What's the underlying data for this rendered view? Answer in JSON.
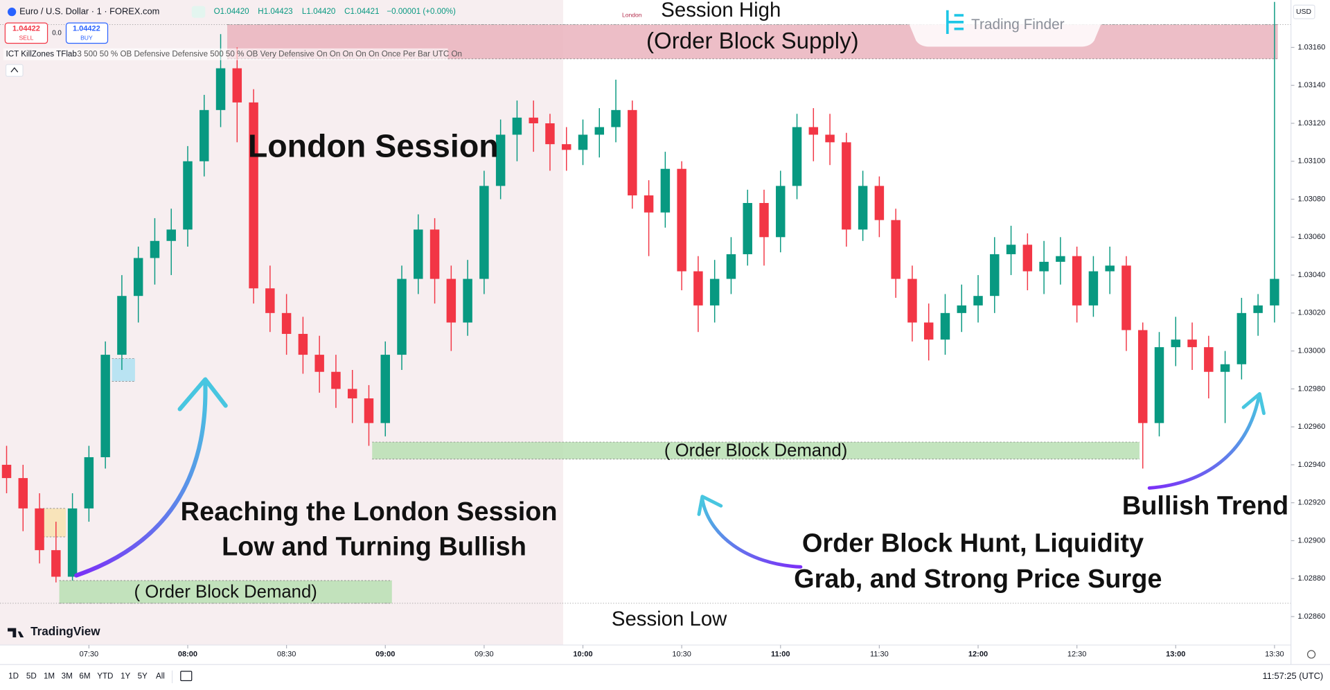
{
  "chart_data": {
    "type": "candlestick",
    "x": [
      "07:05",
      "07:10",
      "07:15",
      "07:20",
      "07:25",
      "07:30",
      "07:35",
      "07:40",
      "07:45",
      "07:50",
      "07:55",
      "08:00",
      "08:05",
      "08:10",
      "08:15",
      "08:20",
      "08:25",
      "08:30",
      "08:35",
      "08:40",
      "08:45",
      "08:50",
      "08:55",
      "09:00",
      "09:05",
      "09:10",
      "09:15",
      "09:20",
      "09:25",
      "09:30",
      "09:35",
      "09:40",
      "09:45",
      "09:50",
      "09:55",
      "10:00",
      "10:05",
      "10:10",
      "10:15",
      "10:20",
      "10:25",
      "10:30",
      "10:35",
      "10:40",
      "10:45",
      "10:50",
      "10:55",
      "11:00",
      "11:05",
      "11:10",
      "11:15",
      "11:20",
      "11:25",
      "11:30",
      "11:35",
      "11:40",
      "11:45",
      "11:50",
      "11:55",
      "12:00",
      "12:05",
      "12:10",
      "12:15",
      "12:20",
      "12:25",
      "12:30",
      "12:35",
      "12:40",
      "12:45",
      "12:50",
      "12:55",
      "13:00",
      "13:05",
      "13:10",
      "13:15",
      "13:20",
      "13:25",
      "13:30"
    ],
    "open": [
      1.0294,
      1.02933,
      1.02917,
      1.02895,
      1.02881,
      1.02917,
      1.02944,
      1.02998,
      1.03029,
      1.03049,
      1.03058,
      1.03064,
      1.031,
      1.03127,
      1.03149,
      1.03131,
      1.03033,
      1.0302,
      1.03009,
      1.02998,
      1.02989,
      1.0298,
      1.02975,
      1.02962,
      1.02998,
      1.03038,
      1.03064,
      1.03038,
      1.03015,
      1.03038,
      1.03087,
      1.03114,
      1.03123,
      1.0312,
      1.03109,
      1.03106,
      1.03114,
      1.03118,
      1.03127,
      1.03082,
      1.03073,
      1.03096,
      1.03042,
      1.03024,
      1.03038,
      1.03051,
      1.03078,
      1.0306,
      1.03087,
      1.03118,
      1.03114,
      1.0311,
      1.03064,
      1.03087,
      1.03069,
      1.03038,
      1.03015,
      1.03006,
      1.0302,
      1.03024,
      1.03029,
      1.03051,
      1.03056,
      1.03042,
      1.03047,
      1.0305,
      1.03024,
      1.03042,
      1.03045,
      1.03011,
      1.02962,
      1.03002,
      1.03006,
      1.03002,
      1.02989,
      1.02993,
      1.0302,
      1.03024
    ],
    "high": [
      1.0295,
      1.0294,
      1.02925,
      1.0291,
      1.02925,
      1.0295,
      1.03005,
      1.0304,
      1.03055,
      1.0307,
      1.03075,
      1.03108,
      1.03135,
      1.03167,
      1.0316,
      1.03138,
      1.03045,
      1.0303,
      1.03018,
      1.03008,
      1.02998,
      1.0299,
      1.02982,
      1.03005,
      1.03045,
      1.03072,
      1.0307,
      1.03045,
      1.03048,
      1.03095,
      1.03122,
      1.03132,
      1.03132,
      1.03125,
      1.03118,
      1.03122,
      1.03128,
      1.03143,
      1.03132,
      1.0309,
      1.03105,
      1.031,
      1.0305,
      1.03048,
      1.0306,
      1.03085,
      1.03085,
      1.03095,
      1.03125,
      1.03128,
      1.03125,
      1.03115,
      1.03095,
      1.03092,
      1.03075,
      1.03045,
      1.03025,
      1.0303,
      1.03035,
      1.0304,
      1.0306,
      1.03066,
      1.03062,
      1.03058,
      1.0306,
      1.03055,
      1.0305,
      1.03055,
      1.0305,
      1.03015,
      1.0301,
      1.03018,
      1.03015,
      1.03008,
      1.03,
      1.03028,
      1.0303,
      1.03184
    ],
    "low": [
      1.02925,
      1.02905,
      1.02888,
      1.02878,
      1.02879,
      1.0291,
      1.02938,
      1.0299,
      1.03015,
      1.03035,
      1.0304,
      1.03055,
      1.03092,
      1.03118,
      1.0311,
      1.03025,
      1.0301,
      1.02998,
      1.02988,
      1.02978,
      1.0297,
      1.02962,
      1.0295,
      1.02955,
      1.0299,
      1.0303,
      1.03025,
      1.03,
      1.03008,
      1.0303,
      1.0308,
      1.031,
      1.03105,
      1.03095,
      1.03095,
      1.03098,
      1.03102,
      1.0311,
      1.03075,
      1.0305,
      1.03065,
      1.03032,
      1.0301,
      1.03015,
      1.0303,
      1.03045,
      1.03045,
      1.03052,
      1.0308,
      1.031,
      1.03098,
      1.03055,
      1.03058,
      1.0306,
      1.03028,
      1.03005,
      1.02995,
      1.02998,
      1.0301,
      1.03015,
      1.0302,
      1.0304,
      1.03032,
      1.0303,
      1.03035,
      1.03015,
      1.03018,
      1.0303,
      1.03,
      1.02938,
      1.02955,
      1.02992,
      1.0299,
      1.02975,
      1.02962,
      1.02985,
      1.03008,
      1.03015
    ],
    "close": [
      1.02933,
      1.02917,
      1.02895,
      1.02881,
      1.02917,
      1.02944,
      1.02998,
      1.03029,
      1.03049,
      1.03058,
      1.03064,
      1.031,
      1.03127,
      1.03149,
      1.03131,
      1.03033,
      1.0302,
      1.03009,
      1.02998,
      1.02989,
      1.0298,
      1.02975,
      1.02962,
      1.02998,
      1.03038,
      1.03064,
      1.03038,
      1.03015,
      1.03038,
      1.03087,
      1.03114,
      1.03123,
      1.0312,
      1.03109,
      1.03106,
      1.03114,
      1.03118,
      1.03127,
      1.03082,
      1.03073,
      1.03096,
      1.03042,
      1.03024,
      1.03038,
      1.03051,
      1.03078,
      1.0306,
      1.03087,
      1.03118,
      1.03114,
      1.0311,
      1.03064,
      1.03087,
      1.03069,
      1.03038,
      1.03015,
      1.03006,
      1.0302,
      1.03024,
      1.03029,
      1.03051,
      1.03056,
      1.03042,
      1.03047,
      1.0305,
      1.03024,
      1.03042,
      1.03045,
      1.03011,
      1.02962,
      1.03002,
      1.03006,
      1.03002,
      1.02989,
      1.02993,
      1.0302,
      1.03024,
      1.03038
    ],
    "up_color": "#089981",
    "down_color": "#f23645",
    "xlim": [
      "07:03",
      "13:35"
    ],
    "xticks": [
      "07:30",
      "08:00",
      "08:30",
      "09:00",
      "09:30",
      "10:00",
      "10:30",
      "11:00",
      "11:30",
      "12:00",
      "12:30",
      "13:00",
      "13:30"
    ],
    "ylim": [
      1.02845,
      1.03185
    ],
    "yticks": [
      {
        "value": 1.0316,
        "label": "1.03160"
      },
      {
        "value": 1.0314,
        "label": "1.03140"
      },
      {
        "value": 1.0312,
        "label": "1.03120"
      },
      {
        "value": 1.031,
        "label": "1.03100"
      },
      {
        "value": 1.0308,
        "label": "1.03080"
      },
      {
        "value": 1.0306,
        "label": "1.03060"
      },
      {
        "value": 1.0304,
        "label": "1.03040"
      },
      {
        "value": 1.0302,
        "label": "1.03020"
      },
      {
        "value": 1.03,
        "label": "1.03000"
      },
      {
        "value": 1.0298,
        "label": "1.02980"
      },
      {
        "value": 1.0296,
        "label": "1.02960"
      },
      {
        "value": 1.0294,
        "label": "1.02940"
      },
      {
        "value": 1.0292,
        "label": "1.02920"
      },
      {
        "value": 1.029,
        "label": "1.02900"
      },
      {
        "value": 1.0288,
        "label": "1.02880"
      },
      {
        "value": 1.0286,
        "label": "1.02860"
      }
    ],
    "grid": false,
    "session": {
      "name": "London",
      "x": [
        "07:03",
        "09:54"
      ],
      "color": "#f7eef0"
    },
    "zones": [
      {
        "label": "(Order Block Supply)",
        "x": [
          "08:12",
          "13:31"
        ],
        "y": [
          1.03154,
          1.03172
        ],
        "color": "#eab3bd"
      },
      {
        "label": "( Order Block Demand)",
        "x": [
          "08:56",
          "12:49"
        ],
        "y": [
          1.02943,
          1.02952
        ],
        "color": "#b9dfb3"
      },
      {
        "label": "( Order Block Demand)",
        "x": [
          "07:21",
          "09:02"
        ],
        "y": [
          1.02867,
          1.02879
        ],
        "color": "#b9dfb3"
      },
      {
        "x": [
          "07:37",
          "07:44"
        ],
        "y": [
          1.02984,
          1.02996
        ],
        "color": "#aee0f2"
      },
      {
        "x": [
          "07:15",
          "07:23"
        ],
        "y": [
          1.02902,
          1.02917
        ],
        "color": "#f8e2b0"
      }
    ],
    "levels": [
      {
        "label": "Session High",
        "value": 1.03172
      },
      {
        "label": "Session Low",
        "value": 1.02867
      }
    ],
    "annotations": [
      [
        "London Session"
      ],
      [
        "Reaching the London Session",
        "Low and Turning Bullish"
      ],
      [
        "Order Block Hunt, Liquidity",
        "Grab, and Strong Price Surge"
      ],
      [
        "Bullish Trend"
      ]
    ]
  },
  "ui": {
    "symbol": "Euro / U.S. Dollar · 1 · FOREX.com",
    "ohlc": [
      "O1.04420",
      "H1.04423",
      "L1.04420",
      "C1.04421",
      "−0.00001 (+0.00%)"
    ],
    "sell": {
      "price": "1.04422",
      "label": "SELL"
    },
    "spread": "0.0",
    "buy": {
      "price": "1.04422",
      "label": "BUY"
    },
    "indicator": "ICT KillZones TFlab",
    "indicator_settings": "3 500 50 % OB Defensive Defensive 500 50 % OB Very Defensive On On On On On Once Per Bar UTC On",
    "currency": "USD",
    "watermark": "Trading Finder",
    "brand": "TradingView",
    "ranges": [
      "1D",
      "5D",
      "1M",
      "3M",
      "6M",
      "YTD",
      "1Y",
      "5Y",
      "All"
    ],
    "clock": "11:57:25 (UTC)"
  }
}
